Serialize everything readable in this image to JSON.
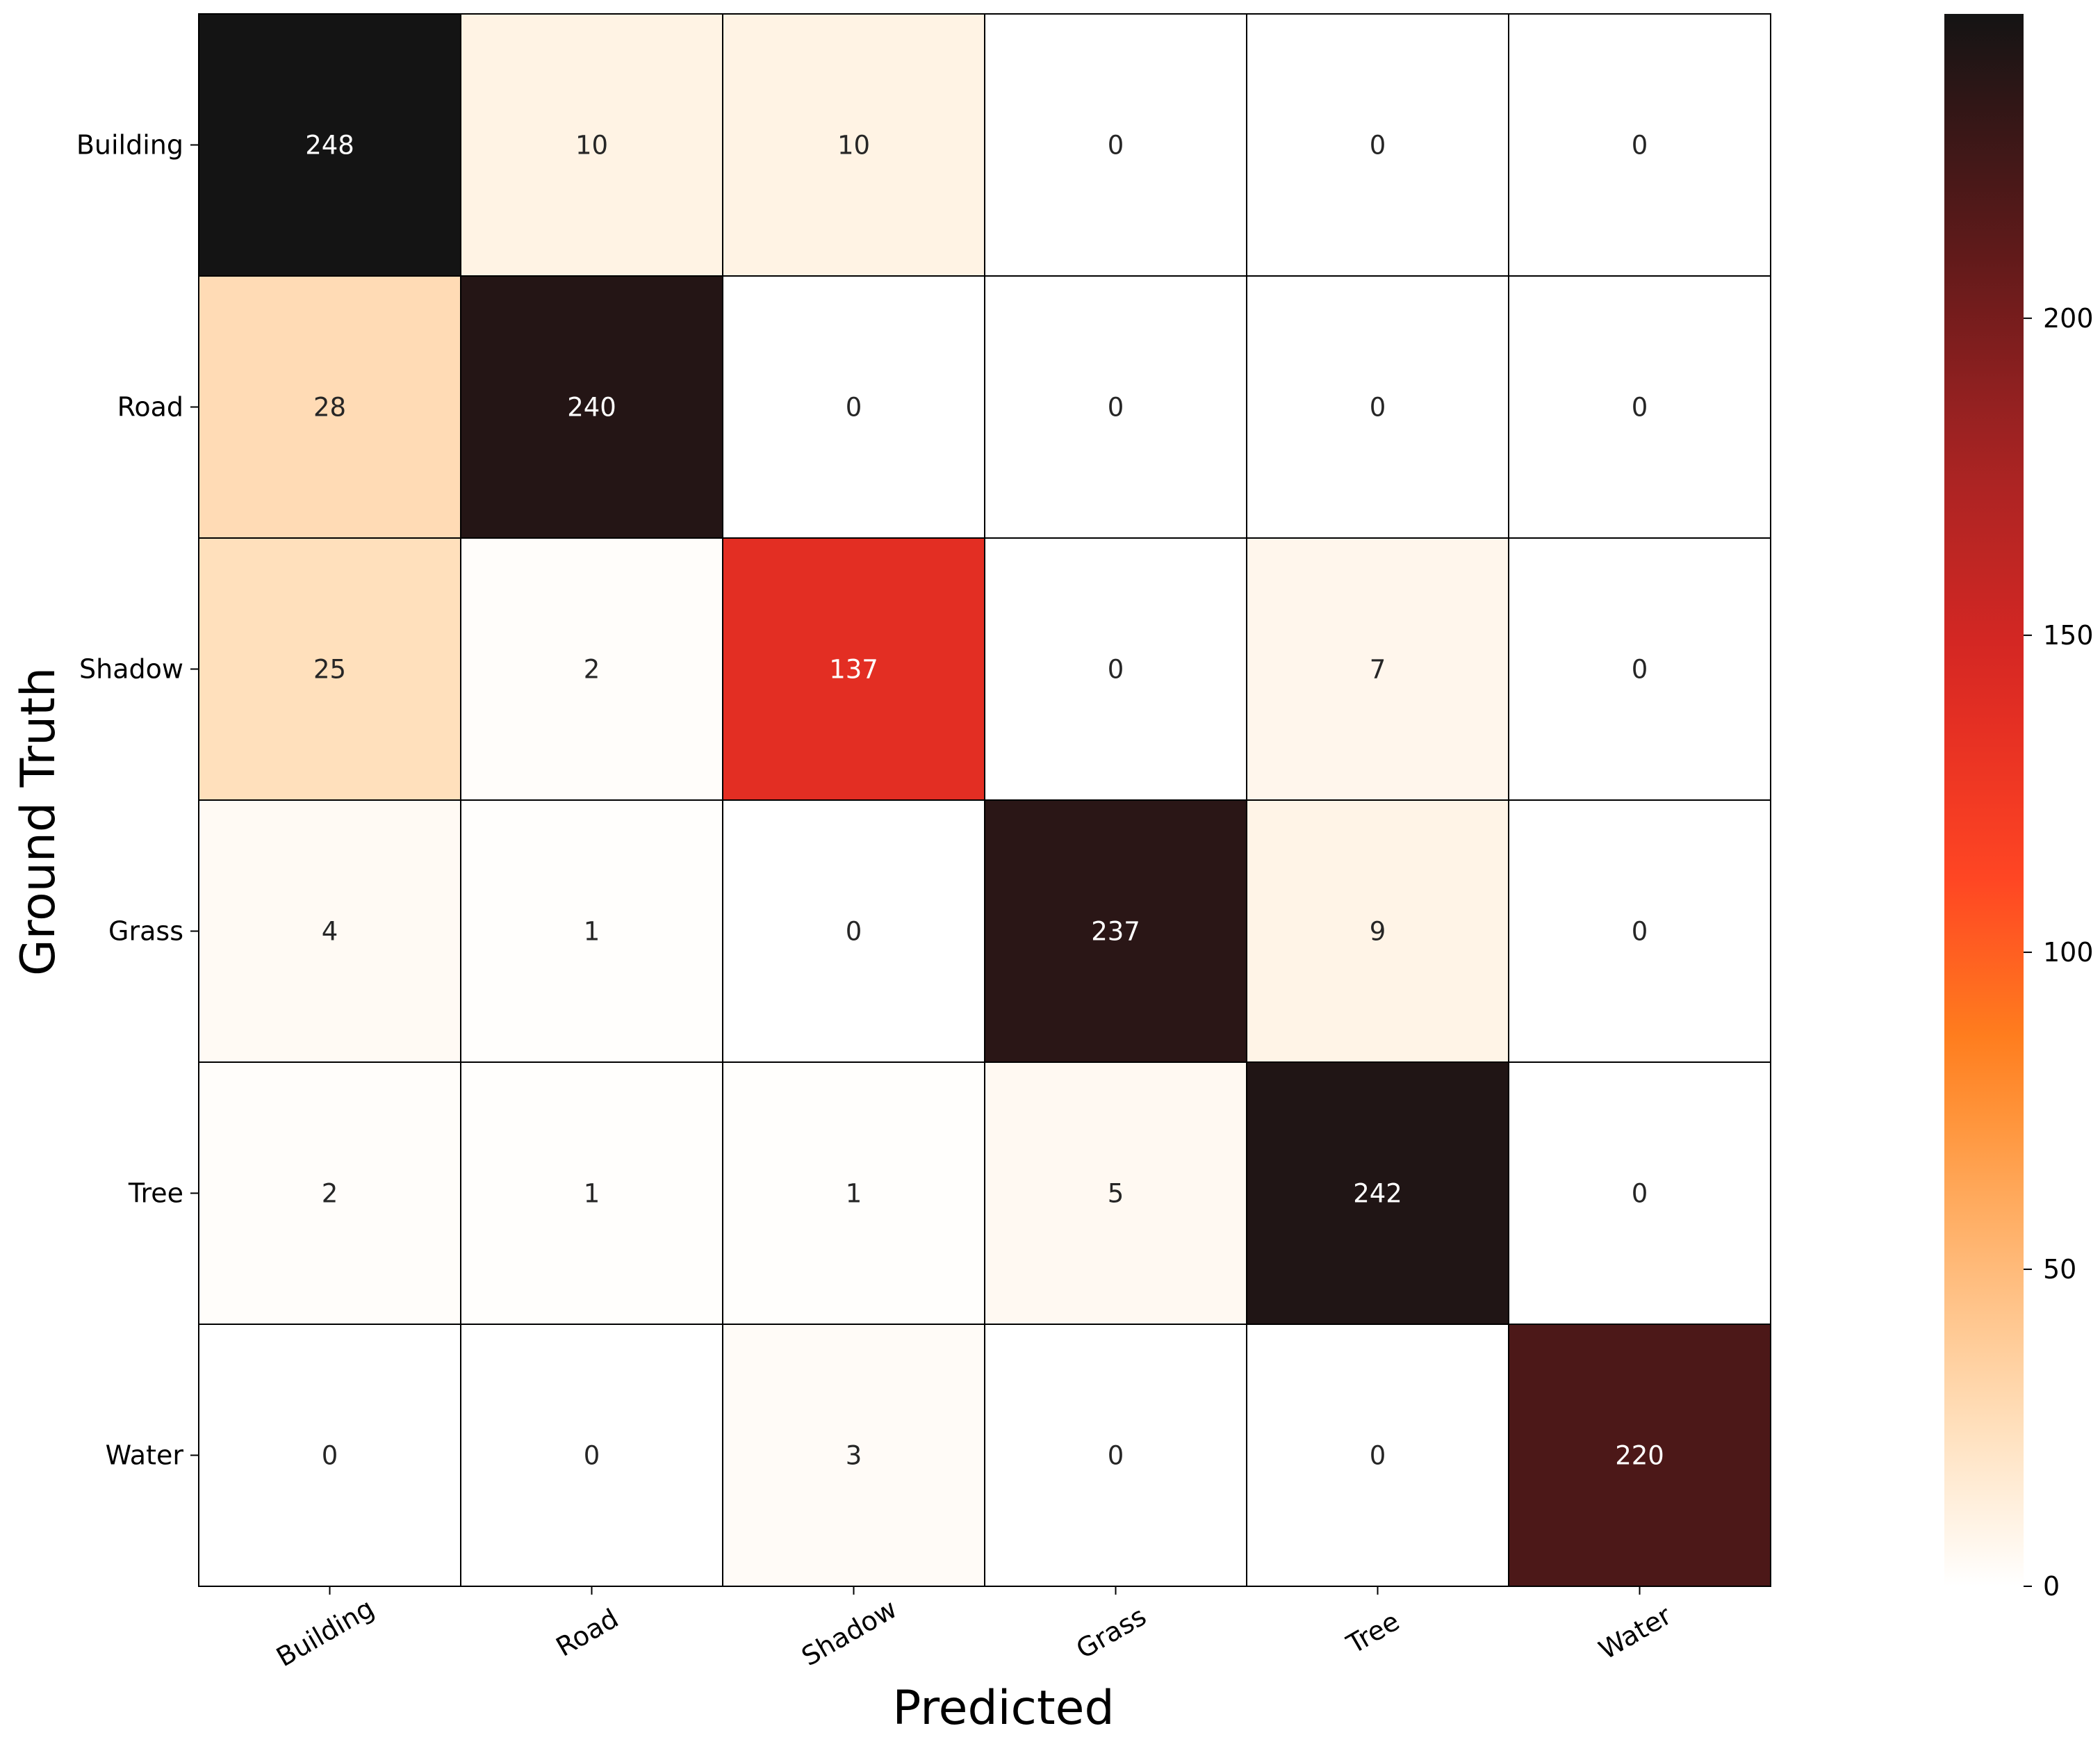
{
  "chart_data": {
    "type": "heatmap",
    "xlabel": "Predicted",
    "ylabel": "Ground Truth",
    "x_categories": [
      "Building",
      "Road",
      "Shadow",
      "Grass",
      "Tree",
      "Water"
    ],
    "y_categories": [
      "Building",
      "Road",
      "Shadow",
      "Grass",
      "Tree",
      "Water"
    ],
    "values": [
      [
        248,
        10,
        10,
        0,
        0,
        0
      ],
      [
        28,
        240,
        0,
        0,
        0,
        0
      ],
      [
        25,
        2,
        137,
        0,
        7,
        0
      ],
      [
        4,
        1,
        0,
        237,
        9,
        0
      ],
      [
        2,
        1,
        1,
        5,
        242,
        0
      ],
      [
        0,
        0,
        3,
        0,
        0,
        220
      ]
    ],
    "colorbar": {
      "min": 0,
      "max": 248,
      "ticks": [
        0,
        50,
        100,
        150,
        200
      ],
      "colormap": "gist_heat_r",
      "placement": "right"
    },
    "cell_text_colors": {
      "light": "#ffffff",
      "dark": "#262626"
    },
    "grid": true
  }
}
